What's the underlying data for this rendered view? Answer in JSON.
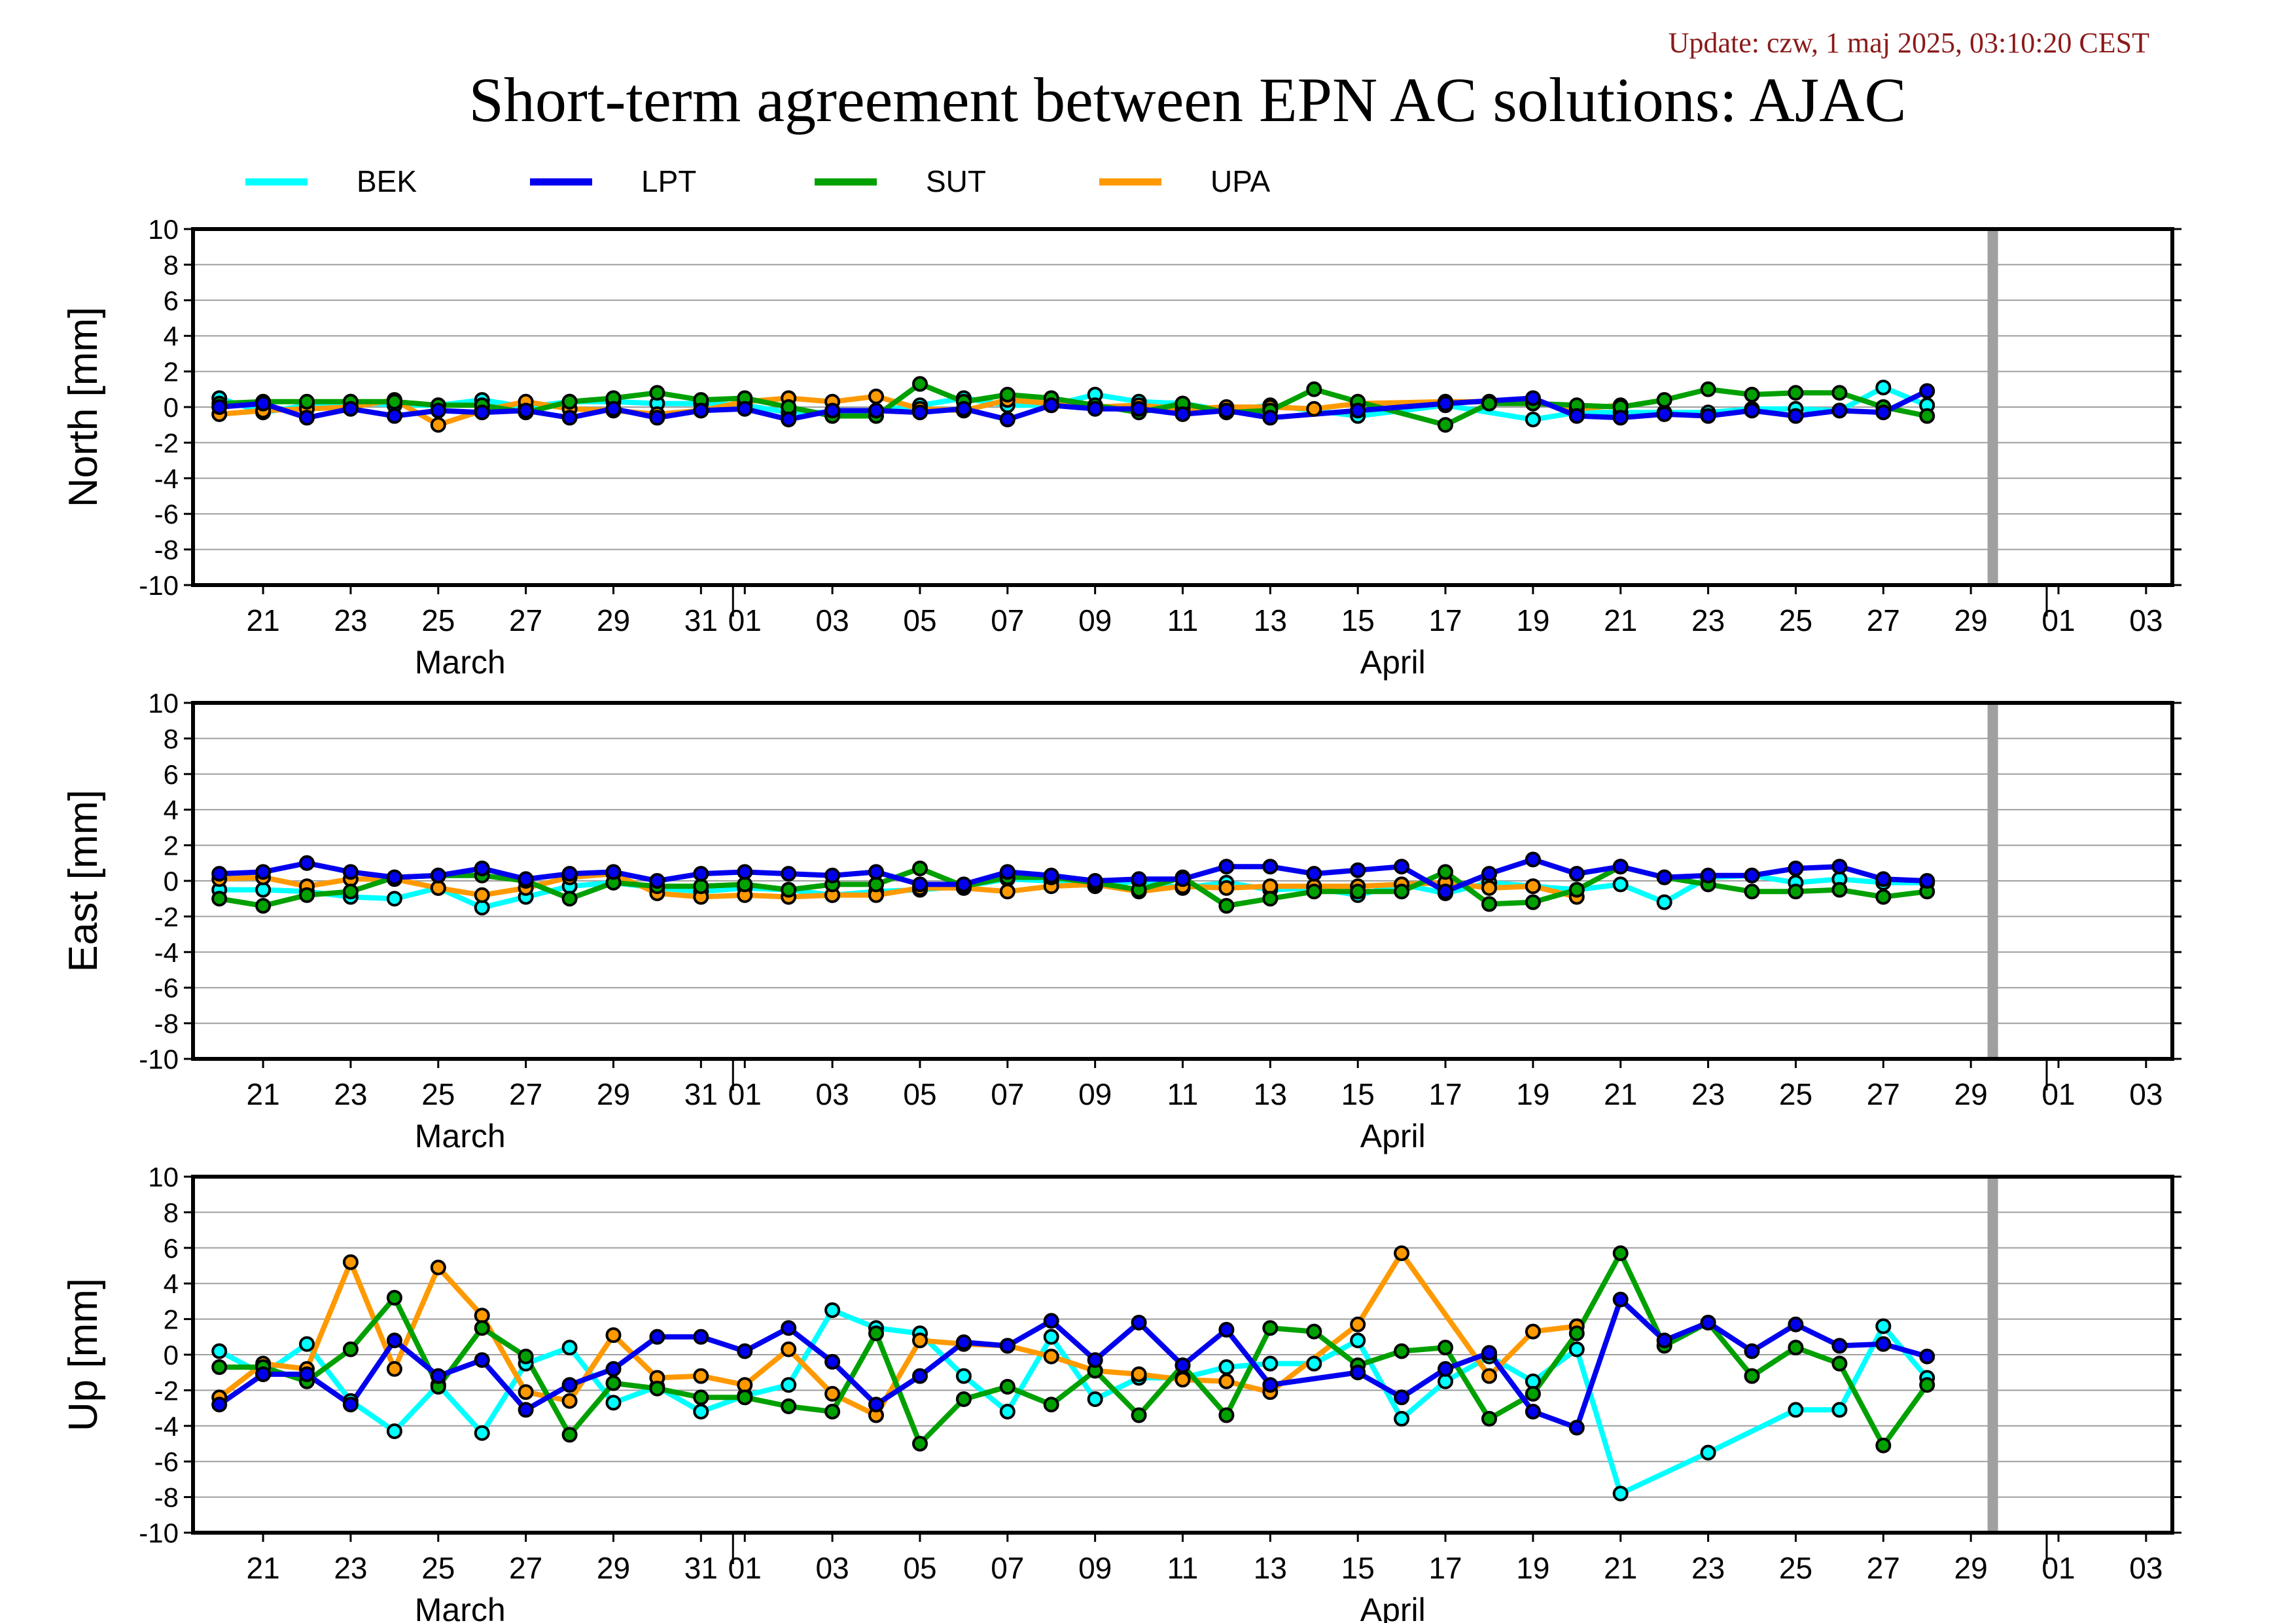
{
  "header": {
    "update_text": "Update: czw, 1 maj 2025, 03:10:20 CEST",
    "title": "Short-term agreement between EPN AC solutions: AJAC"
  },
  "colors": {
    "update_text": "#8b1a1a",
    "gray_marker": "#a0a0a0",
    "gridline": "#9e9e9e",
    "frame": "#000000"
  },
  "legend": {
    "placement": "top",
    "items": [
      {
        "name": "BEK",
        "color": "#00ffff"
      },
      {
        "name": "LPT",
        "color": "#0000ee"
      },
      {
        "name": "SUT",
        "color": "#00a000"
      },
      {
        "name": "UPA",
        "color": "#ff9900"
      }
    ]
  },
  "x_axis": {
    "tick_labels": [
      "21",
      "23",
      "25",
      "27",
      "29",
      "31",
      "01",
      "03",
      "05",
      "07",
      "09",
      "11",
      "13",
      "15",
      "17",
      "19",
      "21",
      "23",
      "25",
      "27",
      "29",
      "01",
      "03"
    ],
    "tick_days": [
      1,
      3,
      5,
      7,
      9,
      11,
      12,
      14,
      16,
      18,
      20,
      22,
      24,
      26,
      28,
      30,
      32,
      34,
      36,
      38,
      40,
      42,
      44
    ],
    "month_labels": [
      {
        "text": "March",
        "day": 5.5
      },
      {
        "text": "April",
        "day": 26.8
      }
    ],
    "month_divider_days": [
      12,
      42
    ],
    "range_days": [
      -0.6,
      44.6
    ],
    "day_1_date": "2025-03-21",
    "gray_marker_day": 40.5
  },
  "chart_data": [
    {
      "type": "line",
      "ylabel": "North [mm]",
      "ylim": [
        -10,
        10
      ],
      "yticks": [
        -10,
        -8,
        -6,
        -4,
        -2,
        0,
        2,
        4,
        6,
        8,
        10
      ],
      "grid": true,
      "x": [
        0,
        1,
        2,
        3,
        4,
        5,
        6,
        7,
        8,
        9,
        10,
        11,
        12,
        13,
        14,
        15,
        16,
        17,
        18,
        19,
        20,
        21,
        22,
        23,
        24,
        25,
        26,
        27,
        28,
        29,
        30,
        31,
        32,
        33,
        34,
        35,
        36,
        37,
        38,
        39
      ],
      "series": [
        {
          "name": "BEK",
          "values": [
            0.5,
            -0.3,
            0.1,
            0.3,
            0.1,
            0.1,
            0.4,
            0.0,
            0.3,
            0.3,
            0.2,
            0.2,
            0.1,
            -0.3,
            -0.3,
            -0.2,
            0.1,
            0.5,
            0.1,
            0.1,
            0.7,
            0.3,
            0.2,
            -0.2,
            0.1,
            null,
            -0.5,
            null,
            0.1,
            null,
            -0.7,
            -0.3,
            -0.3,
            -0.3,
            -0.3,
            -0.1,
            -0.1,
            -0.2,
            1.1,
            0.1
          ]
        },
        {
          "name": "LPT",
          "values": [
            0.0,
            0.2,
            -0.6,
            -0.1,
            -0.5,
            -0.2,
            -0.3,
            -0.2,
            -0.6,
            -0.1,
            -0.6,
            -0.2,
            -0.1,
            -0.7,
            -0.2,
            -0.2,
            -0.3,
            -0.1,
            -0.7,
            0.1,
            -0.1,
            -0.1,
            -0.4,
            -0.2,
            -0.6,
            null,
            -0.2,
            null,
            0.2,
            null,
            0.5,
            -0.5,
            -0.6,
            -0.4,
            -0.5,
            -0.2,
            -0.5,
            -0.2,
            -0.3,
            0.9
          ]
        },
        {
          "name": "SUT",
          "values": [
            0.2,
            0.3,
            0.3,
            0.3,
            0.3,
            0.1,
            0.1,
            -0.3,
            0.3,
            0.5,
            0.8,
            0.4,
            0.5,
            0.0,
            -0.5,
            -0.5,
            1.3,
            0.3,
            0.7,
            0.5,
            0.1,
            -0.3,
            0.2,
            -0.3,
            -0.2,
            1.0,
            0.3,
            null,
            -1.0,
            0.2,
            0.2,
            0.1,
            0.0,
            0.4,
            1.0,
            0.7,
            0.8,
            0.8,
            0.0,
            -0.5
          ]
        },
        {
          "name": "UPA",
          "values": [
            -0.4,
            -0.2,
            -0.1,
            0.0,
            0.4,
            -1.0,
            -0.2,
            0.3,
            -0.1,
            -0.2,
            -0.4,
            -0.2,
            0.3,
            0.5,
            0.3,
            0.6,
            -0.1,
            -0.2,
            0.4,
            0.2,
            0.0,
            0.1,
            -0.1,
            0.0,
            0.0,
            -0.1,
            0.2,
            null,
            0.3,
            0.3,
            0.3,
            -0.1,
            0.1,
            null,
            null,
            null,
            null,
            null,
            null,
            null
          ]
        }
      ]
    },
    {
      "type": "line",
      "ylabel": "East [mm]",
      "ylim": [
        -10,
        10
      ],
      "yticks": [
        -10,
        -8,
        -6,
        -4,
        -2,
        0,
        2,
        4,
        6,
        8,
        10
      ],
      "grid": true,
      "x": [
        0,
        1,
        2,
        3,
        4,
        5,
        6,
        7,
        8,
        9,
        10,
        11,
        12,
        13,
        14,
        15,
        16,
        17,
        18,
        19,
        20,
        21,
        22,
        23,
        24,
        25,
        26,
        27,
        28,
        29,
        30,
        31,
        32,
        33,
        34,
        35,
        36,
        37,
        38,
        39
      ],
      "series": [
        {
          "name": "BEK",
          "values": [
            -0.5,
            -0.5,
            -0.6,
            -0.9,
            -1.0,
            -0.4,
            -1.5,
            -0.9,
            -0.3,
            -0.1,
            -0.4,
            -0.6,
            -0.4,
            -0.5,
            -0.8,
            -0.6,
            -0.5,
            -0.3,
            0.1,
            0.0,
            -0.3,
            0.0,
            -0.4,
            -0.1,
            -0.5,
            -0.4,
            -0.8,
            -0.2,
            -0.7,
            -0.1,
            -0.3,
            -0.5,
            -0.2,
            -1.2,
            0.2,
            0.3,
            -0.1,
            0.1,
            -0.1,
            -0.1
          ]
        },
        {
          "name": "LPT",
          "values": [
            0.4,
            0.5,
            1.0,
            0.5,
            0.2,
            0.3,
            0.7,
            0.1,
            0.4,
            0.5,
            0.0,
            0.4,
            0.5,
            0.4,
            0.3,
            0.5,
            -0.2,
            -0.2,
            0.5,
            0.3,
            0.0,
            0.1,
            0.1,
            0.8,
            0.8,
            0.4,
            0.6,
            0.8,
            -0.6,
            0.4,
            1.2,
            0.4,
            0.8,
            0.2,
            0.3,
            0.3,
            0.7,
            0.8,
            0.1,
            0.0
          ]
        },
        {
          "name": "SUT",
          "values": [
            -1.0,
            -1.4,
            -0.8,
            -0.6,
            0.2,
            0.3,
            0.3,
            0.0,
            -1.0,
            -0.1,
            -0.3,
            -0.3,
            -0.2,
            -0.5,
            -0.2,
            -0.2,
            0.7,
            -0.3,
            0.2,
            0.2,
            -0.1,
            -0.5,
            0.2,
            -1.4,
            -1.0,
            -0.6,
            -0.6,
            -0.6,
            0.5,
            -1.3,
            -1.2,
            -0.5,
            0.8,
            0.2,
            -0.2,
            -0.6,
            -0.6,
            -0.5,
            -0.9,
            -0.6
          ]
        },
        {
          "name": "UPA",
          "values": [
            0.1,
            0.2,
            -0.3,
            0.1,
            0.1,
            -0.4,
            -0.8,
            -0.4,
            0.2,
            0.4,
            -0.7,
            -0.9,
            -0.8,
            -0.9,
            -0.8,
            -0.8,
            -0.4,
            -0.4,
            -0.6,
            -0.3,
            -0.2,
            -0.6,
            -0.3,
            -0.4,
            -0.3,
            -0.3,
            -0.3,
            -0.2,
            -0.1,
            -0.4,
            -0.3,
            -0.9,
            null,
            null,
            null,
            null,
            null,
            null,
            null,
            null
          ]
        }
      ]
    },
    {
      "type": "line",
      "ylabel": "Up [mm]",
      "ylim": [
        -10,
        10
      ],
      "yticks": [
        -10,
        -8,
        -6,
        -4,
        -2,
        0,
        2,
        4,
        6,
        8,
        10
      ],
      "grid": true,
      "x": [
        0,
        1,
        2,
        3,
        4,
        5,
        6,
        7,
        8,
        9,
        10,
        11,
        12,
        13,
        14,
        15,
        16,
        17,
        18,
        19,
        20,
        21,
        22,
        23,
        24,
        25,
        26,
        27,
        28,
        29,
        30,
        31,
        32,
        33,
        34,
        35,
        36,
        37,
        38,
        39
      ],
      "series": [
        {
          "name": "BEK",
          "values": [
            0.2,
            -1.1,
            0.6,
            -2.6,
            -4.3,
            -1.7,
            -4.4,
            -0.5,
            0.4,
            -2.7,
            -1.8,
            -3.2,
            -2.3,
            -1.7,
            2.5,
            1.5,
            1.2,
            -1.2,
            -3.2,
            1.0,
            -2.5,
            -1.3,
            -1.3,
            -0.7,
            -0.5,
            -0.5,
            0.8,
            -3.6,
            -1.5,
            -0.1,
            -1.5,
            0.3,
            -7.8,
            null,
            -5.5,
            null,
            -3.1,
            -3.1,
            1.6,
            -1.3
          ]
        },
        {
          "name": "LPT",
          "values": [
            -2.8,
            -1.1,
            -1.1,
            -2.8,
            0.8,
            -1.2,
            -0.3,
            -3.1,
            -1.7,
            -0.8,
            1.0,
            1.0,
            0.2,
            1.5,
            -0.4,
            -2.8,
            -1.2,
            0.7,
            0.5,
            1.9,
            -0.3,
            1.8,
            -0.6,
            1.4,
            -1.7,
            null,
            -1.0,
            -2.4,
            -0.8,
            0.1,
            -3.2,
            -4.1,
            3.1,
            0.8,
            1.8,
            0.2,
            1.7,
            0.5,
            0.6,
            -0.1
          ]
        },
        {
          "name": "SUT",
          "values": [
            -0.7,
            -0.7,
            -1.5,
            0.3,
            3.2,
            -1.8,
            1.5,
            -0.1,
            -4.5,
            -1.6,
            -1.9,
            -2.4,
            -2.4,
            -2.9,
            -3.2,
            1.2,
            -5.0,
            -2.5,
            -1.8,
            -2.8,
            -0.9,
            -3.4,
            -0.6,
            -3.4,
            1.5,
            1.3,
            -0.6,
            0.2,
            0.4,
            -3.6,
            -2.2,
            1.2,
            5.7,
            0.5,
            1.8,
            -1.2,
            0.4,
            -0.5,
            -5.1,
            -1.7
          ]
        },
        {
          "name": "UPA",
          "values": [
            -2.4,
            -0.5,
            -0.8,
            5.2,
            -0.8,
            4.9,
            2.2,
            -2.1,
            -2.6,
            1.1,
            -1.3,
            -1.2,
            -1.7,
            0.3,
            -2.2,
            -3.4,
            0.8,
            0.6,
            0.5,
            -0.1,
            -0.9,
            -1.1,
            -1.4,
            -1.5,
            -2.1,
            null,
            1.7,
            5.7,
            null,
            -1.2,
            1.3,
            1.6,
            null,
            null,
            null,
            null,
            null,
            null,
            null,
            null
          ]
        }
      ]
    }
  ]
}
